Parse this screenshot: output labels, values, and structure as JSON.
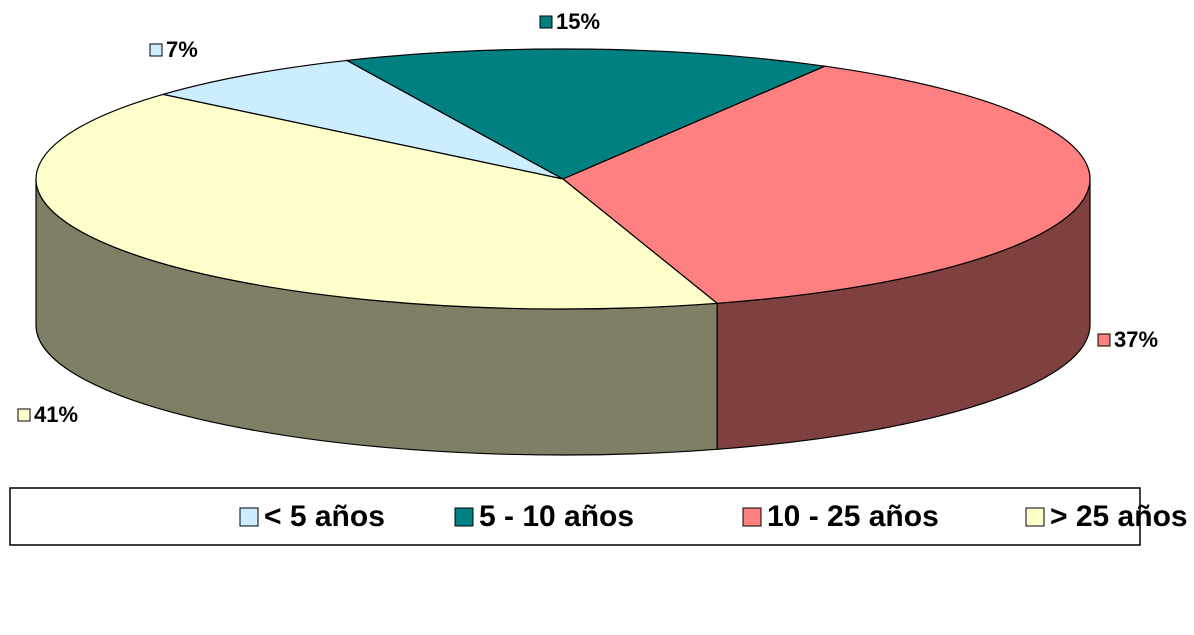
{
  "chart_data": {
    "type": "pie3d",
    "categories": [
      "< 5 años",
      "5 - 10 años",
      "10 - 25 años",
      "> 25 años"
    ],
    "values": [
      7,
      15,
      37,
      41
    ],
    "value_labels": [
      "7%",
      "15%",
      "37%",
      "41%"
    ],
    "colors": [
      "#CCECFF",
      "#008080",
      "#FF8080",
      "#FFFFCC"
    ],
    "legend": "bottom"
  }
}
